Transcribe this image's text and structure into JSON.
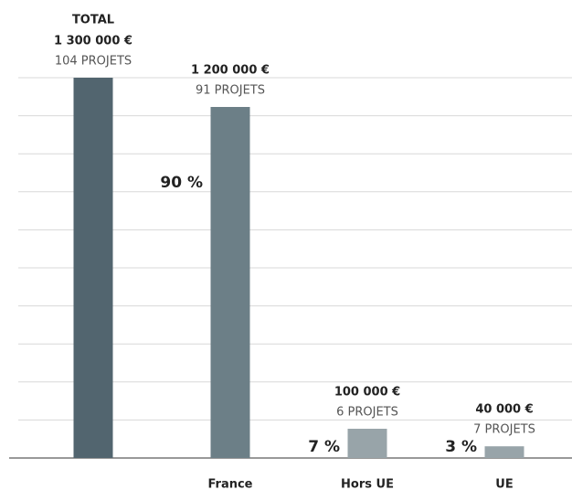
{
  "chart_data": {
    "type": "bar",
    "total_label": "TOTAL",
    "categories": [
      null,
      "France",
      "Hors UE",
      "UE"
    ],
    "values": [
      1300000,
      1200000,
      100000,
      40000
    ],
    "value_labels": [
      "1 300 000 €",
      "1 200 000 €",
      "100 000 €",
      "40 000 €"
    ],
    "project_labels": [
      "104  PROJETS",
      "91 PROJETS",
      "6 PROJETS",
      "7 PROJETS"
    ],
    "share_labels": [
      null,
      "90 %",
      "7 %",
      "3 %"
    ],
    "colors": [
      "#52656f",
      "#6c7f87",
      "#98a4a9",
      "#98a4a9"
    ],
    "ylim": [
      0,
      1300000
    ],
    "yticks": [
      0,
      130000,
      260000,
      390000,
      520000,
      650000,
      780000,
      910000,
      1040000,
      1170000,
      1300000
    ],
    "grid": true
  }
}
